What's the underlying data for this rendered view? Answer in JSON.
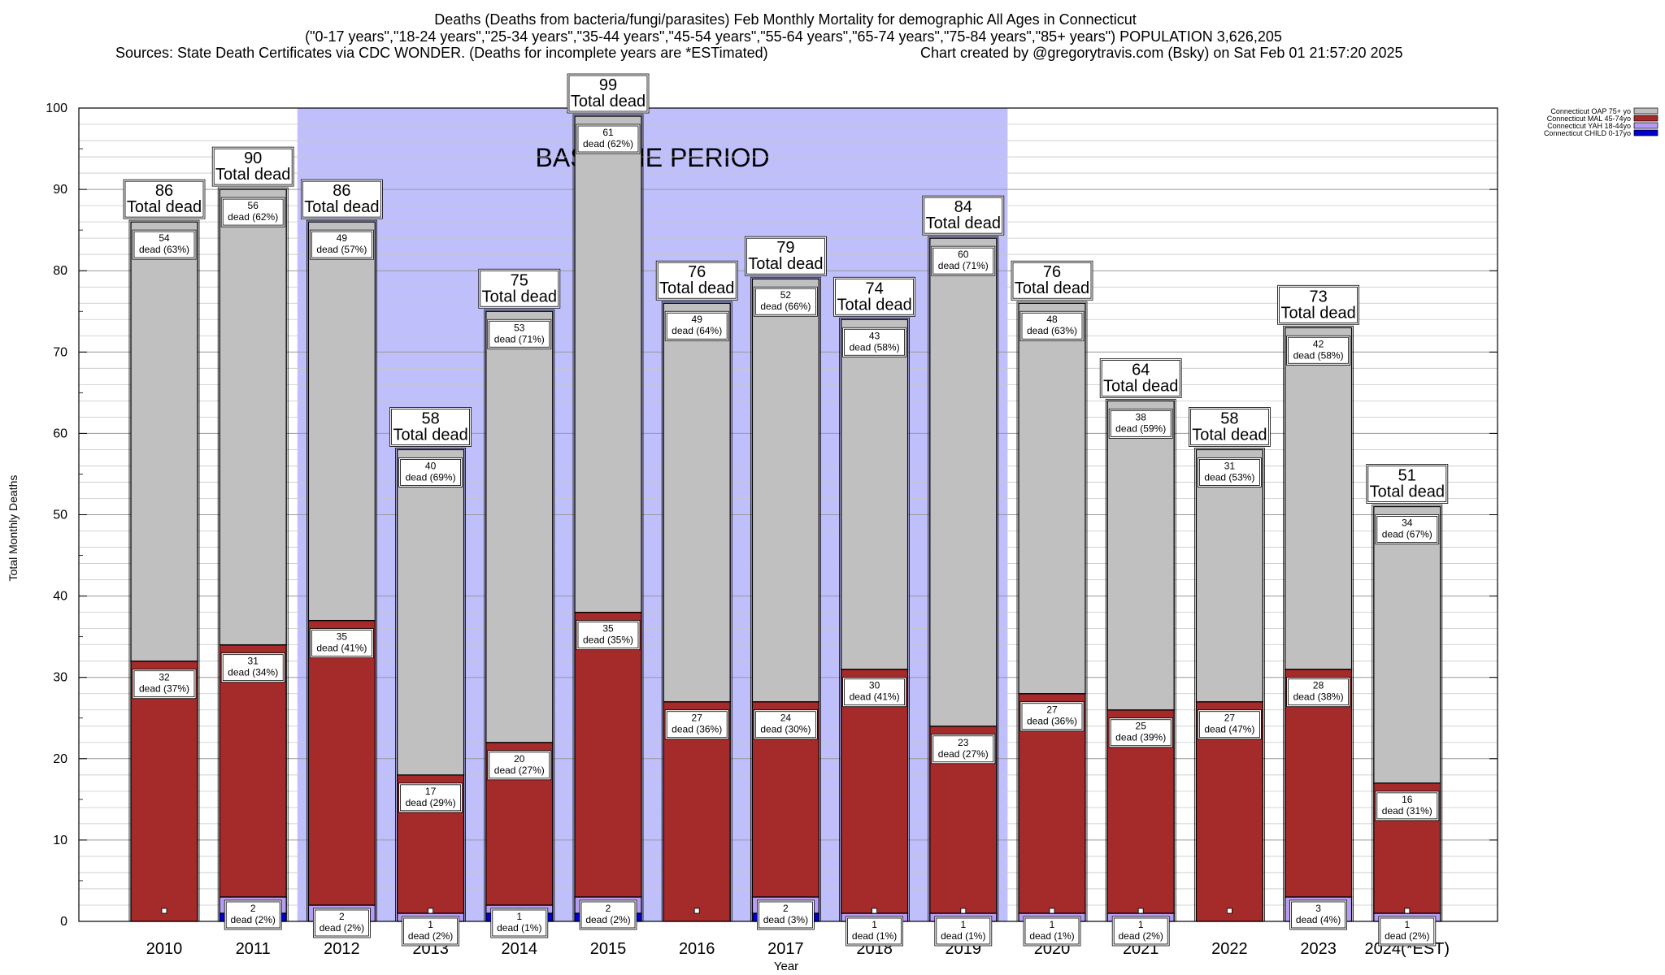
{
  "chart_data": {
    "type": "bar",
    "title": "Deaths (Deaths from bacteria/fungi/parasites) Feb Monthly Mortality for demographic All Ages in Connecticut",
    "subtitle": "(\"0-17 years\",\"18-24 years\",\"25-34 years\",\"35-44 years\",\"45-54 years\",\"55-64 years\",\"65-74 years\",\"75-84 years\",\"85+ years\") POPULATION 3,626,205",
    "source": "Sources: State Death Certificates via CDC WONDER. (Deaths for incomplete years are *ESTimated)",
    "credit": "Chart created by @gregorytravis.com (Bsky) on Sat Feb 01 21:57:20 2025",
    "xlabel": "Year",
    "ylabel": "Total Monthly Deaths",
    "ylim": [
      0,
      100
    ],
    "yticks": [
      0,
      10,
      20,
      30,
      40,
      50,
      60,
      70,
      80,
      90,
      100
    ],
    "stacked": true,
    "grid": true,
    "legend_position": "top-right",
    "baseline_label": "BASELINE PERIOD",
    "baseline_categories": [
      "2012",
      "2013",
      "2014",
      "2015",
      "2016",
      "2017",
      "2018",
      "2019"
    ],
    "total_suffix": "Total dead",
    "dead_word": "dead",
    "categories": [
      "2010",
      "2011",
      "2012",
      "2013",
      "2014",
      "2015",
      "2016",
      "2017",
      "2018",
      "2019",
      "2020",
      "2021",
      "2022",
      "2023",
      "2024(*EST)"
    ],
    "totals": [
      86,
      90,
      86,
      58,
      75,
      99,
      76,
      79,
      74,
      84,
      76,
      64,
      58,
      73,
      51
    ],
    "series": [
      {
        "name": "Connecticut CHILD 0-17yo",
        "color": "#0000cc",
        "values": [
          0,
          1,
          0,
          0,
          1,
          1,
          0,
          1,
          0,
          0,
          0,
          0,
          0,
          0,
          0
        ]
      },
      {
        "name": "Connecticut YAH 18-44yo",
        "color": "#b79cf5",
        "values": [
          0,
          2,
          2,
          1,
          1,
          2,
          0,
          2,
          1,
          1,
          1,
          1,
          0,
          3,
          1
        ],
        "labels": [
          "",
          "2",
          "2",
          "1",
          "1",
          "2",
          "",
          "2",
          "1",
          "1",
          "1",
          "1",
          "",
          "3",
          "1"
        ],
        "pct_labels": [
          "",
          "(2%)",
          "(2%)",
          "(2%)",
          "(1%)",
          "(2%)",
          "",
          "(3%)",
          "(1%)",
          "(1%)",
          "(1%)",
          "(2%)",
          "",
          "(4%)",
          "(2%)"
        ]
      },
      {
        "name": "Connecticut MAL 45-74yo",
        "color": "#a52a2a",
        "values": [
          32,
          31,
          35,
          17,
          20,
          35,
          27,
          24,
          30,
          23,
          27,
          25,
          27,
          28,
          16
        ],
        "pct_labels": [
          "(37%)",
          "(34%)",
          "(41%)",
          "(29%)",
          "(27%)",
          "(35%)",
          "(36%)",
          "(30%)",
          "(41%)",
          "(27%)",
          "(36%)",
          "(39%)",
          "(47%)",
          "(38%)",
          "(31%)"
        ]
      },
      {
        "name": "Connecticut OAP 75+ yo",
        "color": "#c0c0c0",
        "values": [
          54,
          56,
          49,
          40,
          53,
          61,
          49,
          52,
          43,
          60,
          48,
          38,
          31,
          42,
          34
        ],
        "pct_labels": [
          "(63%)",
          "(62%)",
          "(57%)",
          "(69%)",
          "(71%)",
          "(62%)",
          "(64%)",
          "(66%)",
          "(58%)",
          "(71%)",
          "(63%)",
          "(59%)",
          "(53%)",
          "(58%)",
          "(67%)"
        ]
      }
    ]
  }
}
